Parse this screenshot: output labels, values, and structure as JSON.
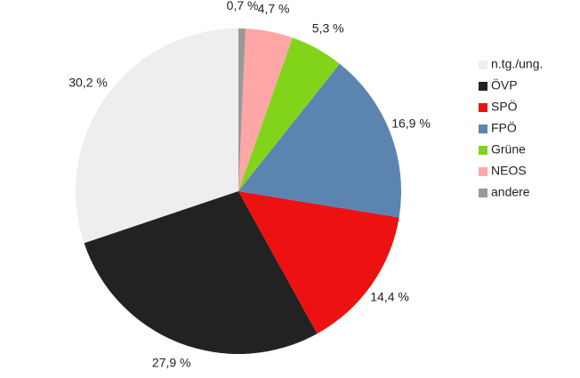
{
  "chart_data": {
    "type": "pie",
    "categories": [
      "n.tg./ung.",
      "ÖVP",
      "SPÖ",
      "FPÖ",
      "Grüne",
      "NEOS",
      "andere"
    ],
    "values": [
      30.2,
      27.9,
      14.4,
      16.9,
      5.3,
      4.7,
      0.7
    ],
    "value_labels": [
      "30,2 %",
      "27,9 %",
      "14,4 %",
      "16,9 %",
      "5,3 %",
      "4,7 %",
      "0,7 %"
    ],
    "colors": [
      "#eeeeee",
      "#222222",
      "#ee1111",
      "#5b84b1",
      "#81d41a",
      "#ffa6a6",
      "#999999"
    ],
    "legend": "right"
  }
}
